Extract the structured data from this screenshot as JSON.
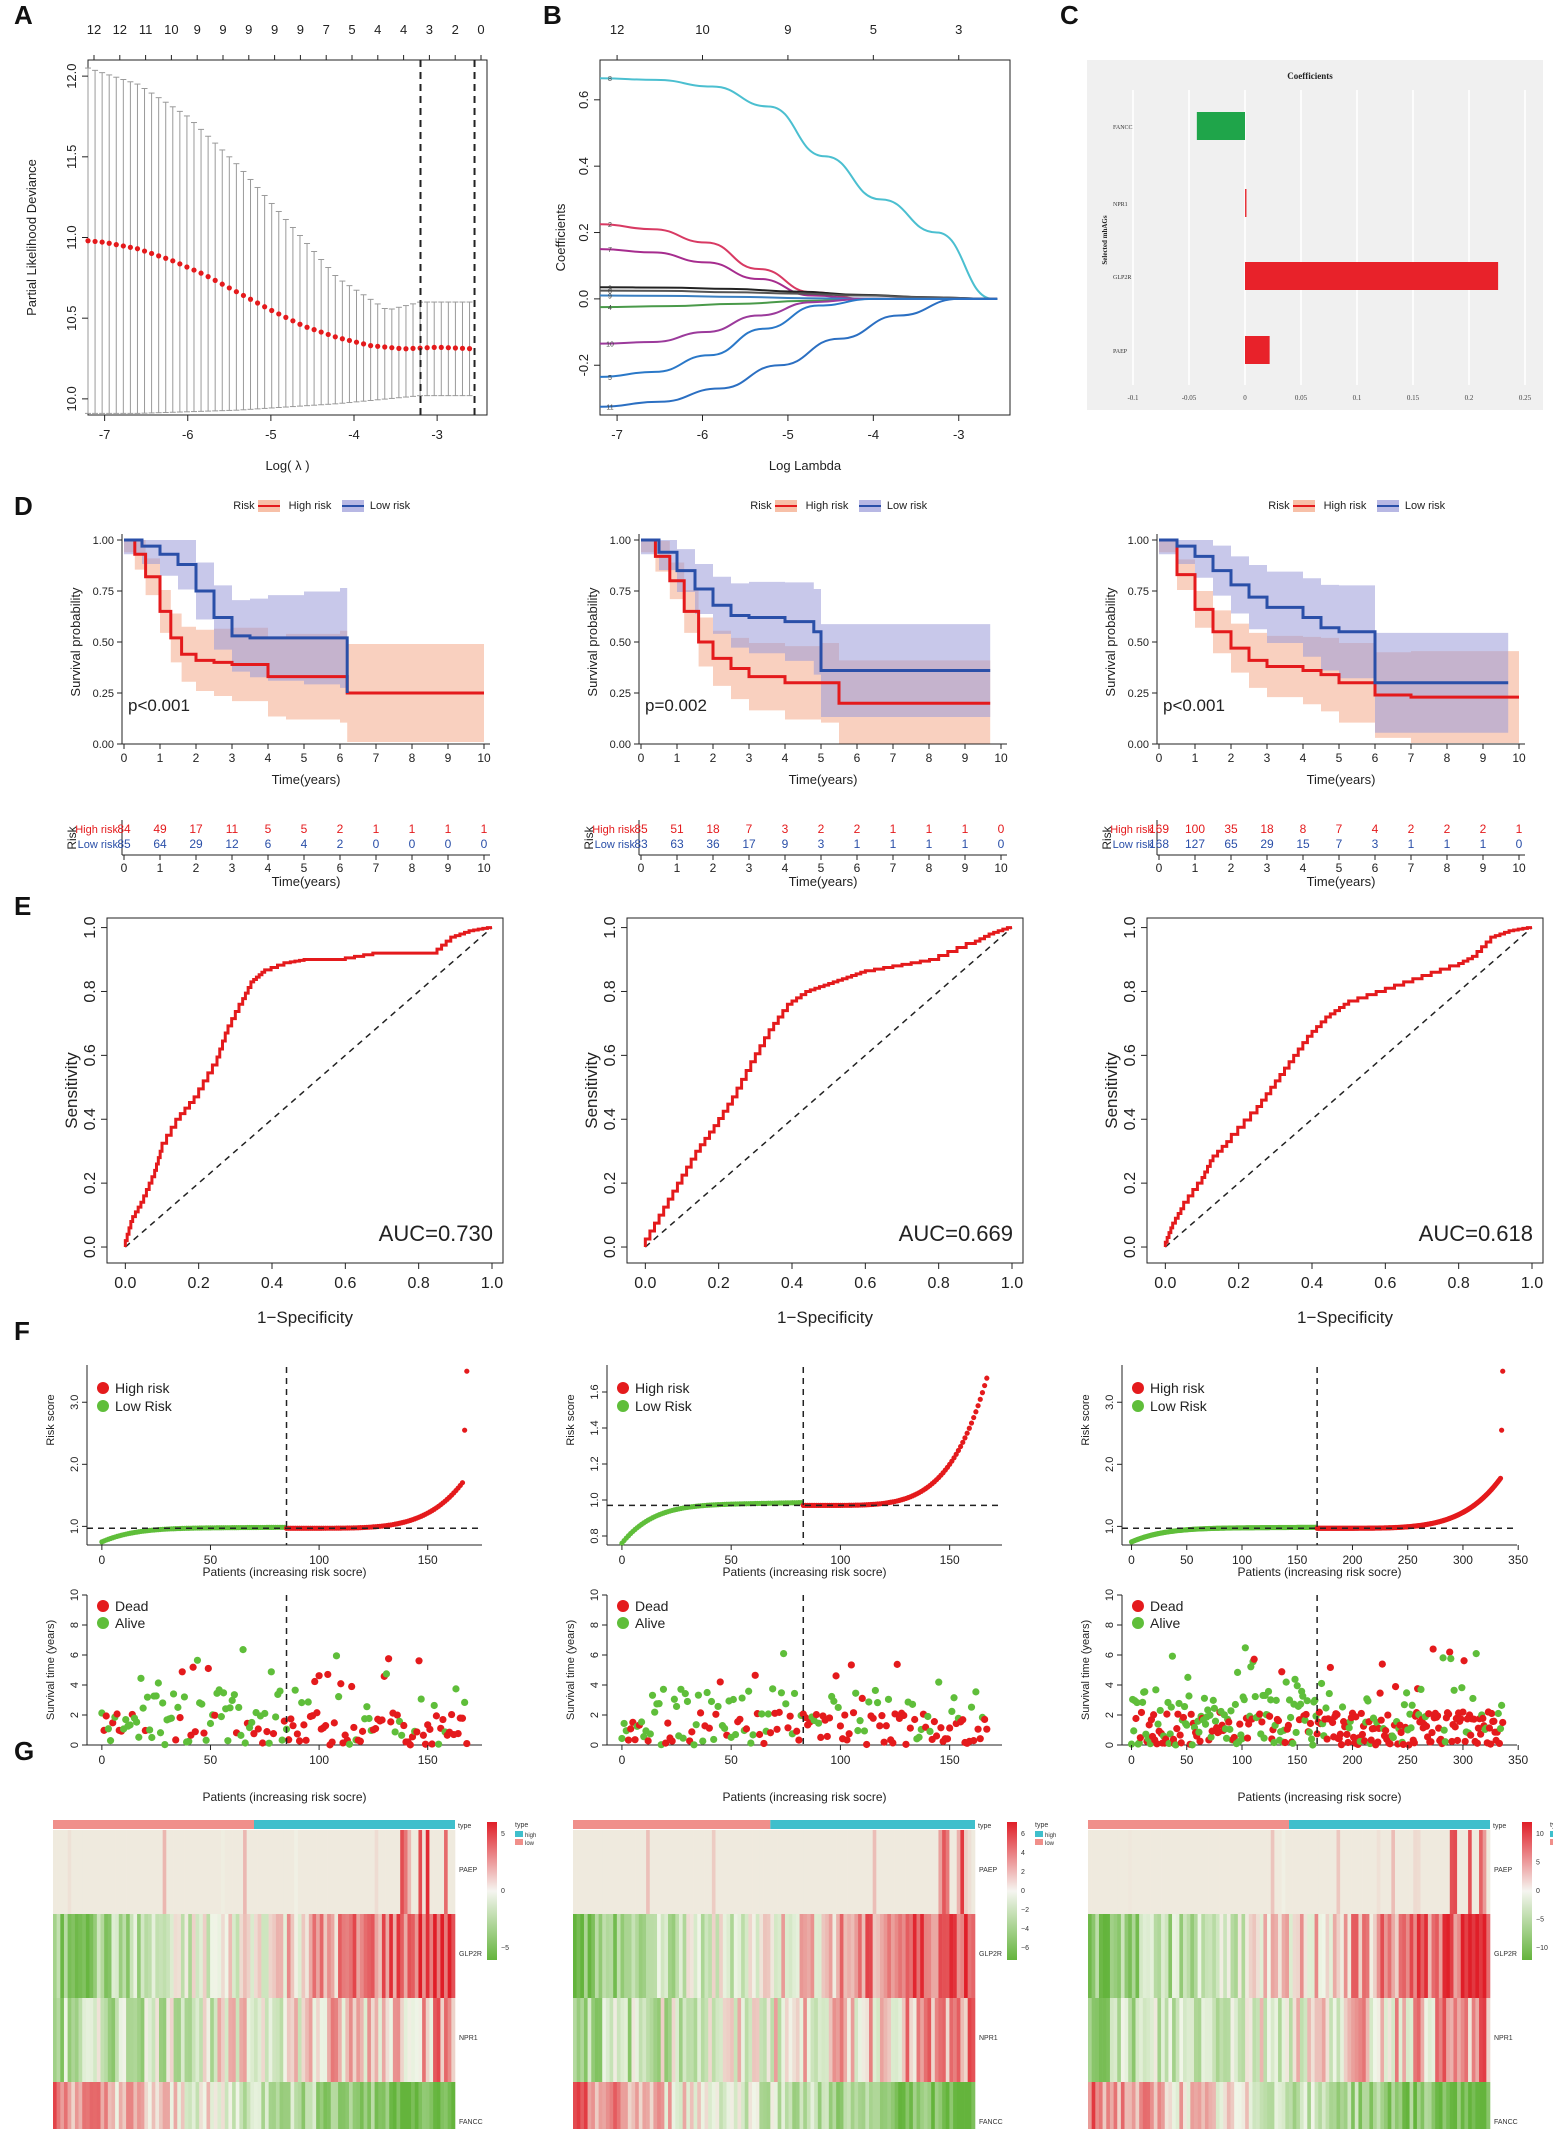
{
  "panel_labels": [
    "A",
    "B",
    "C",
    "D",
    "E",
    "F",
    "G"
  ],
  "chart_data": [
    {
      "id": "A",
      "type": "line",
      "xlabel": "Log( λ )",
      "ylabel": "Partial Likelihood Deviance",
      "xlim": [
        -7.2,
        -2.4
      ],
      "ylim": [
        9.9,
        12.1
      ],
      "xticks": [
        -7,
        -6,
        -5,
        -4,
        -3
      ],
      "yticks": [
        10.0,
        10.5,
        11.0,
        11.5,
        12.0
      ],
      "top_ticks": [
        "12",
        "12",
        "11",
        "10",
        "9",
        "9",
        "9",
        "9",
        "9",
        "7",
        "5",
        "4",
        "4",
        "3",
        "2",
        "0"
      ],
      "vlines": [
        -3.2,
        -2.55
      ],
      "series": [
        {
          "name": "mean",
          "x": [
            -7.2,
            -7.0,
            -6.6,
            -6.2,
            -5.8,
            -5.4,
            -5.0,
            -4.6,
            -4.2,
            -3.8,
            -3.4,
            -3.0,
            -2.55
          ],
          "y": [
            10.98,
            10.97,
            10.93,
            10.86,
            10.77,
            10.66,
            10.55,
            10.45,
            10.38,
            10.33,
            10.31,
            10.32,
            10.31
          ]
        },
        {
          "name": "upper",
          "x": [
            -7.2,
            -6.6,
            -6.0,
            -5.4,
            -4.8,
            -4.2,
            -3.6,
            -3.2,
            -2.55
          ],
          "y": [
            12.05,
            11.95,
            11.75,
            11.45,
            11.1,
            10.75,
            10.55,
            10.6,
            10.6
          ]
        },
        {
          "name": "lower",
          "x": [
            -7.2,
            -6.6,
            -6.0,
            -5.4,
            -4.8,
            -4.2,
            -3.6,
            -3.2,
            -2.55
          ],
          "y": [
            9.91,
            9.91,
            9.92,
            9.93,
            9.95,
            9.97,
            10.0,
            10.02,
            10.02
          ]
        }
      ]
    },
    {
      "id": "B",
      "type": "line",
      "xlabel": "Log Lambda",
      "ylabel": "Coefficients",
      "xlim": [
        -7.2,
        -2.4
      ],
      "ylim": [
        -0.35,
        0.72
      ],
      "xticks": [
        -7,
        -6,
        -5,
        -4,
        -3
      ],
      "yticks": [
        -0.2,
        0.0,
        0.2,
        0.4,
        0.6
      ],
      "top_ticks": [
        "12",
        "10",
        "9",
        "5",
        "3"
      ],
      "left_labels": [
        "8",
        "2",
        "7",
        "3",
        "6",
        "4",
        "9",
        "10",
        "5",
        "11"
      ],
      "series": [
        {
          "name": "8",
          "end": -2.6,
          "values": [
            0.665,
            0.66,
            0.64,
            0.58,
            0.43,
            0.3,
            0.2,
            0.0
          ]
        },
        {
          "name": "2",
          "end": -4.1,
          "values": [
            0.225,
            0.21,
            0.17,
            0.09,
            0.02,
            0.0
          ]
        },
        {
          "name": "7",
          "end": -4.1,
          "values": [
            0.15,
            0.14,
            0.11,
            0.06,
            0.01,
            0.0
          ]
        },
        {
          "name": "3",
          "end": -2.6,
          "values": [
            0.035,
            0.034,
            0.03,
            0.022,
            0.012,
            0.005,
            0.0
          ]
        },
        {
          "name": "6",
          "end": -2.6,
          "values": [
            0.025,
            0.024,
            0.02,
            0.016,
            0.01,
            0.005,
            0.0
          ]
        },
        {
          "name": "4",
          "end": -4.0,
          "values": [
            -0.025,
            -0.022,
            -0.015,
            -0.006,
            0.0
          ]
        },
        {
          "name": "9",
          "end": -4.0,
          "values": [
            0.01,
            0.009,
            0.006,
            0.002,
            0.0
          ]
        },
        {
          "name": "10",
          "end": -4.1,
          "values": [
            -0.135,
            -0.13,
            -0.1,
            -0.05,
            -0.01,
            0.0
          ]
        },
        {
          "name": "5",
          "end": -4.0,
          "values": [
            -0.235,
            -0.22,
            -0.17,
            -0.09,
            -0.02,
            0.0
          ]
        },
        {
          "name": "11",
          "end": -3.0,
          "values": [
            -0.325,
            -0.31,
            -0.27,
            -0.2,
            -0.12,
            -0.05,
            0.0
          ]
        }
      ]
    },
    {
      "id": "C",
      "type": "bar",
      "title": "Coefficients",
      "ylabel": "Selected mhAGs",
      "xlim": [
        -0.1,
        0.25
      ],
      "xticks": [
        "-0.1",
        "-0.05",
        "0",
        "0.05",
        "0.1",
        "0.15",
        "0.2",
        "0.25"
      ],
      "categories": [
        "FANCC",
        "NPR1",
        "GLP2R",
        "PAEP"
      ],
      "values": [
        -0.043,
        0.001,
        0.226,
        0.022
      ]
    },
    {
      "id": "D",
      "type": "line",
      "subtype": "kaplan-meier",
      "legend_title": "Risk",
      "legend": [
        "High risk",
        "Low risk"
      ],
      "xlabel": "Time(years)",
      "ylabel": "Survival probability",
      "xlim": [
        0,
        10
      ],
      "ylim": [
        0,
        1
      ],
      "xticks": [
        0,
        1,
        2,
        3,
        4,
        5,
        6,
        7,
        8,
        9,
        10
      ],
      "yticks": [
        "0.00",
        "0.25",
        "0.50",
        "0.75",
        "1.00"
      ],
      "table_title": "Risk",
      "table_xlabel": "Time(years)",
      "row_labels": [
        "High risk",
        "Low risk"
      ],
      "panels": [
        {
          "pvalue": "p<0.001",
          "high": {
            "t": [
              0,
              0.3,
              0.6,
              1,
              1.3,
              1.6,
              2,
              2.5,
              3,
              4,
              4.5,
              6,
              6.2,
              10
            ],
            "s": [
              1,
              0.93,
              0.82,
              0.65,
              0.52,
              0.44,
              0.41,
              0.4,
              0.39,
              0.33,
              0.33,
              0.33,
              0.25,
              0.25
            ]
          },
          "low": {
            "t": [
              0,
              0.5,
              1,
              1.5,
              2,
              2.5,
              3,
              3.5,
              4,
              5,
              6,
              6.2
            ],
            "s": [
              1,
              0.97,
              0.93,
              0.88,
              0.75,
              0.62,
              0.53,
              0.52,
              0.52,
              0.52,
              0.52,
              0.25
            ]
          },
          "at_risk_high": [
            "84",
            "49",
            "17",
            "11",
            "5",
            "5",
            "2",
            "1",
            "1",
            "1",
            "1"
          ],
          "at_risk_low": [
            "85",
            "64",
            "29",
            "12",
            "6",
            "4",
            "2",
            "0",
            "0",
            "0",
            "0"
          ]
        },
        {
          "pvalue": "p=0.002",
          "high": {
            "t": [
              0,
              0.4,
              0.8,
              1.2,
              1.6,
              2,
              2.5,
              3,
              4,
              5,
              5.5,
              9.7
            ],
            "s": [
              1,
              0.92,
              0.8,
              0.65,
              0.5,
              0.42,
              0.37,
              0.33,
              0.3,
              0.3,
              0.2,
              0.2
            ]
          },
          "low": {
            "t": [
              0,
              0.5,
              1,
              1.5,
              2,
              2.5,
              3,
              4,
              4.8,
              5,
              9.7
            ],
            "s": [
              1,
              0.94,
              0.85,
              0.76,
              0.68,
              0.63,
              0.62,
              0.6,
              0.55,
              0.36,
              0.36
            ]
          },
          "at_risk_high": [
            "85",
            "51",
            "18",
            "7",
            "3",
            "2",
            "2",
            "1",
            "1",
            "1",
            "0"
          ],
          "at_risk_low": [
            "83",
            "63",
            "36",
            "17",
            "9",
            "3",
            "1",
            "1",
            "1",
            "1",
            "0"
          ]
        },
        {
          "pvalue": "p<0.001",
          "high": {
            "t": [
              0,
              0.5,
              1,
              1.5,
              2,
              2.5,
              3,
              4,
              4.5,
              5,
              6,
              7,
              10
            ],
            "s": [
              1,
              0.83,
              0.66,
              0.55,
              0.47,
              0.41,
              0.38,
              0.36,
              0.34,
              0.3,
              0.24,
              0.23,
              0.23
            ]
          },
          "low": {
            "t": [
              0,
              0.5,
              1,
              1.5,
              2,
              2.5,
              3,
              4,
              4.5,
              5,
              6,
              9.7
            ],
            "s": [
              1,
              0.97,
              0.92,
              0.85,
              0.78,
              0.72,
              0.67,
              0.62,
              0.57,
              0.55,
              0.3,
              0.3
            ]
          },
          "at_risk_high": [
            "169",
            "100",
            "35",
            "18",
            "8",
            "7",
            "4",
            "2",
            "2",
            "2",
            "1"
          ],
          "at_risk_low": [
            "168",
            "127",
            "65",
            "29",
            "15",
            "7",
            "3",
            "1",
            "1",
            "1",
            "0"
          ]
        }
      ]
    },
    {
      "id": "E",
      "type": "line",
      "subtype": "roc",
      "xlabel": "1−Specificity",
      "ylabel": "Sensitivity",
      "xlim": [
        0,
        1
      ],
      "ylim": [
        0,
        1
      ],
      "ticks": [
        "0.0",
        "0.2",
        "0.4",
        "0.6",
        "0.8",
        "1.0"
      ],
      "panels": [
        {
          "auc": "AUC=0.730",
          "x": [
            0,
            0.02,
            0.05,
            0.08,
            0.1,
            0.15,
            0.2,
            0.25,
            0.28,
            0.32,
            0.35,
            0.38,
            0.45,
            0.5,
            0.6,
            0.7,
            0.85,
            0.9,
            0.95,
            1
          ],
          "y": [
            0,
            0.08,
            0.14,
            0.22,
            0.3,
            0.4,
            0.47,
            0.57,
            0.67,
            0.76,
            0.83,
            0.86,
            0.89,
            0.9,
            0.9,
            0.92,
            0.92,
            0.97,
            0.99,
            1
          ]
        },
        {
          "auc": "AUC=0.669",
          "x": [
            0,
            0.05,
            0.1,
            0.15,
            0.2,
            0.25,
            0.3,
            0.35,
            0.4,
            0.45,
            0.5,
            0.55,
            0.6,
            0.7,
            0.8,
            0.9,
            0.95,
            1
          ],
          "y": [
            0,
            0.1,
            0.2,
            0.3,
            0.38,
            0.47,
            0.58,
            0.68,
            0.76,
            0.8,
            0.82,
            0.84,
            0.86,
            0.88,
            0.9,
            0.95,
            0.98,
            1
          ]
        },
        {
          "auc": "AUC=0.618",
          "x": [
            0,
            0.02,
            0.05,
            0.1,
            0.13,
            0.18,
            0.25,
            0.3,
            0.35,
            0.4,
            0.45,
            0.5,
            0.6,
            0.7,
            0.8,
            0.85,
            0.9,
            0.95,
            1
          ],
          "y": [
            0,
            0.06,
            0.12,
            0.2,
            0.27,
            0.33,
            0.42,
            0.5,
            0.58,
            0.66,
            0.72,
            0.76,
            0.8,
            0.84,
            0.88,
            0.91,
            0.97,
            0.99,
            1
          ]
        }
      ]
    },
    {
      "id": "F",
      "type": "scatter",
      "risk_legend": [
        "High risk",
        "Low Risk"
      ],
      "status_legend": [
        "Dead",
        "Alive"
      ],
      "risk_ylabel": "Risk score",
      "surv_ylabel": "Survival time (years)",
      "xlabel": "Patients (increasing risk socre)",
      "panels": [
        {
          "n": 169,
          "cut": 85,
          "xticks": [
            0,
            50,
            100,
            150
          ],
          "risk_ylim": [
            0.7,
            3.6
          ],
          "risk_yticks": [
            "1.0",
            "2.0",
            "3.0"
          ],
          "cut_y": 0.97,
          "risk_start": 0.75,
          "risk_mid": 0.97,
          "risk_top": 1.85,
          "outliers": [
            2.55,
            3.5
          ],
          "surv_ylim": [
            0,
            10
          ],
          "surv_yticks": [
            "0",
            "2",
            "4",
            "6",
            "8",
            "10"
          ]
        },
        {
          "n": 168,
          "cut": 83,
          "xticks": [
            0,
            50,
            100,
            150
          ],
          "risk_ylim": [
            0.75,
            1.75
          ],
          "risk_yticks": [
            "0.8",
            "1.0",
            "1.2",
            "1.4",
            "1.6"
          ],
          "cut_y": 0.97,
          "risk_start": 0.76,
          "risk_mid": 0.97,
          "risk_top": 1.72,
          "outliers": [],
          "surv_ylim": [
            0,
            10
          ],
          "surv_yticks": [
            "0",
            "2",
            "4",
            "6",
            "8",
            "10"
          ]
        },
        {
          "n": 337,
          "cut": 168,
          "xticks": [
            0,
            50,
            100,
            150,
            200,
            250,
            300,
            350
          ],
          "risk_ylim": [
            0.7,
            3.6
          ],
          "risk_yticks": [
            "1.0",
            "2.0",
            "3.0"
          ],
          "cut_y": 0.97,
          "risk_start": 0.75,
          "risk_mid": 0.97,
          "risk_top": 1.85,
          "outliers": [
            2.55,
            3.5
          ],
          "surv_ylim": [
            0,
            10
          ],
          "surv_yticks": [
            "0",
            "2",
            "4",
            "6",
            "8",
            "10"
          ]
        }
      ]
    },
    {
      "id": "G",
      "type": "heatmap",
      "type_label": "type",
      "groups": [
        "high",
        "low"
      ],
      "rows": [
        "PAEP",
        "GLP2R",
        "NPR1",
        "FANCC"
      ],
      "panels": [
        {
          "scale": [
            "5",
            "0",
            "−5"
          ],
          "n": 169,
          "cut": 85
        },
        {
          "scale": [
            "6",
            "4",
            "2",
            "0",
            "−2",
            "−4",
            "−6"
          ],
          "n": 168,
          "cut": 83
        },
        {
          "scale": [
            "10",
            "5",
            "0",
            "−5",
            "−10"
          ],
          "n": 337,
          "cut": 168
        }
      ]
    }
  ]
}
